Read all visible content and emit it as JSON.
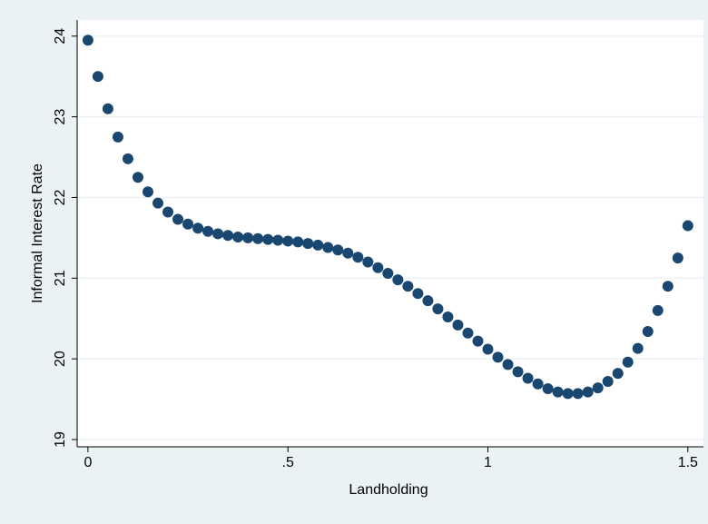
{
  "chart_data": {
    "type": "scatter",
    "x_label": "Landholding",
    "y_label": "Informal Interest Rate",
    "x": [
      0,
      0.025,
      0.05,
      0.075,
      0.1,
      0.125,
      0.15,
      0.175,
      0.2,
      0.225,
      0.25,
      0.275,
      0.3,
      0.325,
      0.35,
      0.375,
      0.4,
      0.425,
      0.45,
      0.475,
      0.5,
      0.525,
      0.55,
      0.575,
      0.6,
      0.625,
      0.65,
      0.675,
      0.7,
      0.725,
      0.75,
      0.775,
      0.8,
      0.825,
      0.85,
      0.875,
      0.9,
      0.925,
      0.95,
      0.975,
      1.0,
      1.025,
      1.05,
      1.075,
      1.1,
      1.125,
      1.15,
      1.175,
      1.2,
      1.225,
      1.25,
      1.275,
      1.3,
      1.325,
      1.35,
      1.375,
      1.4,
      1.425,
      1.45,
      1.475,
      1.5
    ],
    "values": [
      23.95,
      23.5,
      23.1,
      22.75,
      22.48,
      22.25,
      22.07,
      21.93,
      21.82,
      21.73,
      21.67,
      21.62,
      21.58,
      21.55,
      21.53,
      21.51,
      21.5,
      21.49,
      21.48,
      21.47,
      21.46,
      21.45,
      21.43,
      21.41,
      21.38,
      21.35,
      21.31,
      21.26,
      21.2,
      21.13,
      21.06,
      20.98,
      20.9,
      20.81,
      20.72,
      20.62,
      20.52,
      20.42,
      20.32,
      20.22,
      20.12,
      20.02,
      19.93,
      19.84,
      19.76,
      19.69,
      19.63,
      19.59,
      19.57,
      19.57,
      19.59,
      19.64,
      19.72,
      19.82,
      19.96,
      20.13,
      20.34,
      20.6,
      20.9,
      21.25,
      21.65
    ],
    "color": "#1a476f",
    "xlim": [
      -0.027,
      1.539
    ],
    "ylim": [
      18.91,
      24.2
    ],
    "xticks": [
      0,
      {
        "value": 0.5,
        "label": ".5"
      },
      1,
      1.5
    ],
    "yticks": [
      19,
      20,
      21,
      22,
      23,
      24
    ],
    "grid": true
  }
}
